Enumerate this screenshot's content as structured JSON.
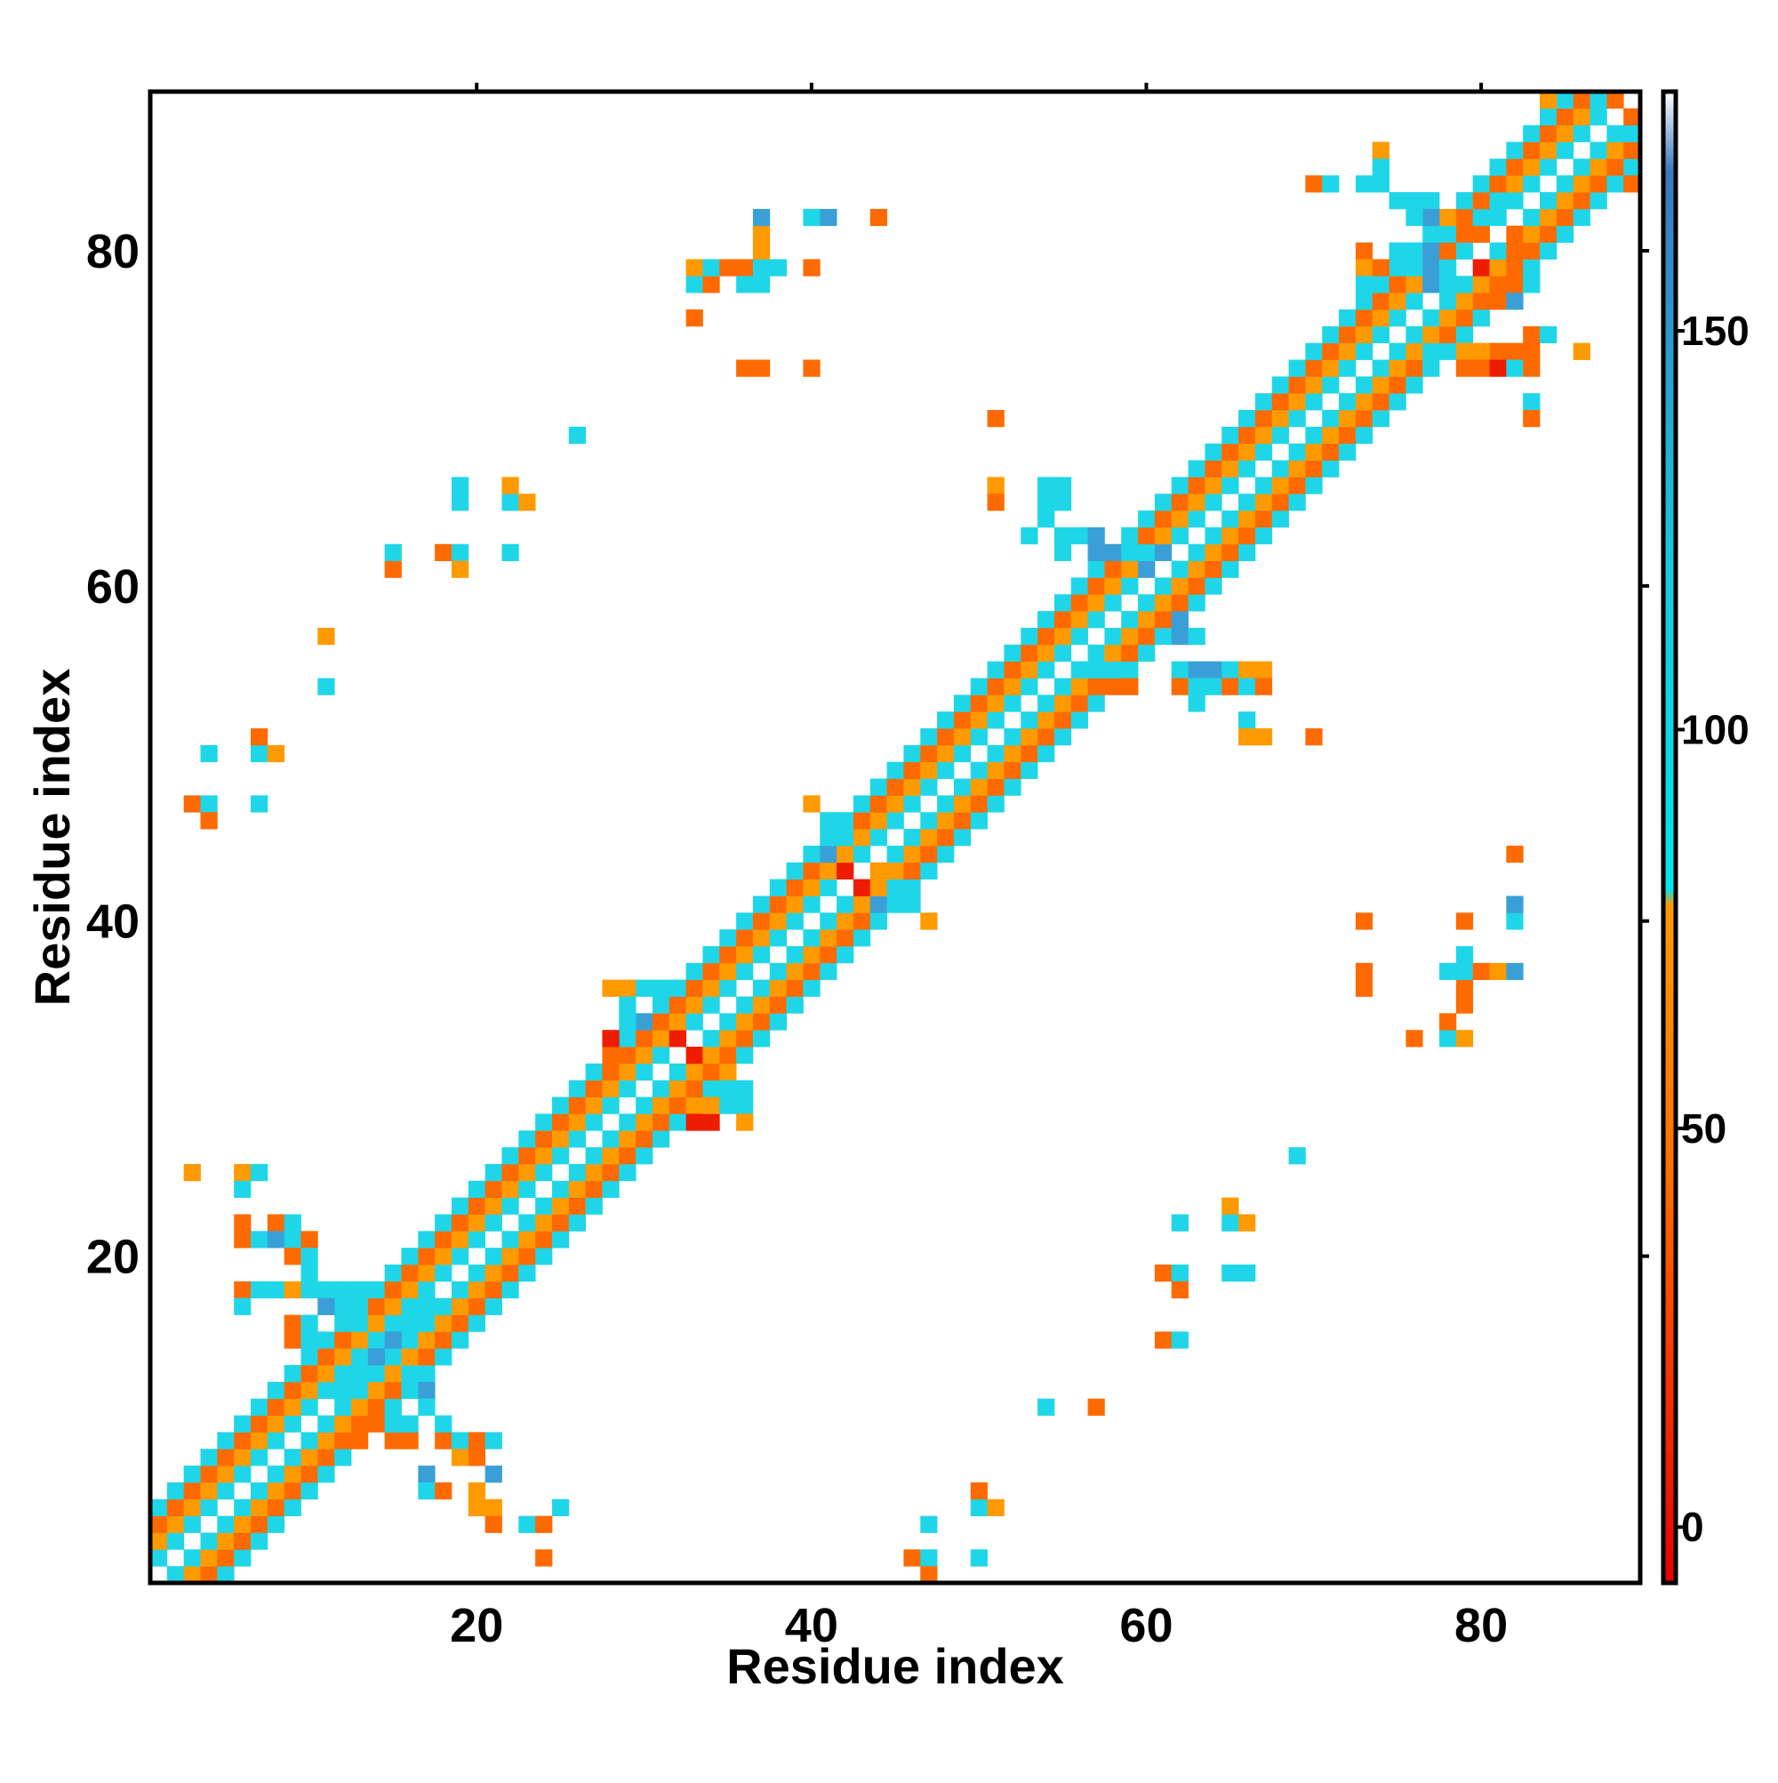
{
  "chart_data": {
    "type": "heatmap",
    "title": "",
    "xlabel": "Residue index",
    "ylabel": "Residue index",
    "xlim": [
      0.5,
      89.5
    ],
    "ylim": [
      0.5,
      89.5
    ],
    "x_ticks": [
      20,
      40,
      60,
      80
    ],
    "y_ticks": [
      20,
      40,
      60,
      80
    ],
    "grid": false,
    "legend": "colorbar on the right",
    "colorbar": {
      "ticks": [
        0,
        50,
        100,
        150
      ],
      "range": [
        -7,
        180
      ],
      "stops": [
        {
          "value": -7,
          "color": "#e60000"
        },
        {
          "value": 25,
          "color": "#ff4000"
        },
        {
          "value": 45,
          "color": "#ff7000"
        },
        {
          "value": 78,
          "color": "#ff9a00"
        },
        {
          "value": 80,
          "color": "#00e5ee"
        },
        {
          "value": 120,
          "color": "#18c8e0"
        },
        {
          "value": 170,
          "color": "#3a78c0"
        },
        {
          "value": 180,
          "color": "#ffffff"
        }
      ]
    },
    "cell_colors": {
      "R": "#ee1c00",
      "O": "#ff6a00",
      "Y": "#ff9a00",
      "C": "#1fd6e8",
      "B": "#3a9fd6",
      "D": "#4a7fc8"
    },
    "band": {
      "description": "values along the diagonal band |i-j| <= 4; code pattern by offset 0..4",
      "offset_codes": [
        "W",
        "C",
        "Y",
        "O",
        "C"
      ]
    },
    "cells": [
      [
        3,
        25,
        "Y"
      ],
      [
        6,
        25,
        "Y"
      ],
      [
        7,
        25,
        "C"
      ],
      [
        6,
        24,
        "C"
      ],
      [
        6,
        22,
        "O"
      ],
      [
        8,
        22,
        "O"
      ],
      [
        9,
        22,
        "C"
      ],
      [
        6,
        21,
        "O"
      ],
      [
        7,
        21,
        "C"
      ],
      [
        8,
        21,
        "B"
      ],
      [
        9,
        21,
        "C"
      ],
      [
        10,
        21,
        "O"
      ],
      [
        9,
        20,
        "O"
      ],
      [
        10,
        20,
        "C"
      ],
      [
        6,
        18,
        "O"
      ],
      [
        7,
        18,
        "C"
      ],
      [
        8,
        18,
        "C"
      ],
      [
        6,
        17,
        "C"
      ],
      [
        9,
        18,
        "Y"
      ],
      [
        10,
        19,
        "C"
      ],
      [
        11,
        18,
        "C"
      ],
      [
        12,
        18,
        "C"
      ],
      [
        13,
        18,
        "C"
      ],
      [
        18,
        9,
        "O"
      ],
      [
        19,
        9,
        "C"
      ],
      [
        20,
        9,
        "O"
      ],
      [
        21,
        9,
        "C"
      ],
      [
        20,
        8,
        "O"
      ],
      [
        19,
        8,
        "Y"
      ],
      [
        17,
        7,
        "B"
      ],
      [
        21,
        7,
        "B"
      ],
      [
        17,
        6,
        "C"
      ],
      [
        18,
        6,
        "O"
      ],
      [
        20,
        5,
        "Y"
      ],
      [
        21,
        5,
        "Y"
      ],
      [
        20,
        6,
        "Y"
      ],
      [
        21,
        4,
        "O"
      ],
      [
        23,
        4,
        "C"
      ],
      [
        24,
        4,
        "O"
      ],
      [
        25,
        5,
        "C"
      ],
      [
        24,
        2,
        "O"
      ],
      [
        47,
        4,
        "C"
      ],
      [
        50,
        5,
        "C"
      ],
      [
        51,
        5,
        "Y"
      ],
      [
        50,
        6,
        "O"
      ],
      [
        46,
        2,
        "O"
      ],
      [
        47,
        2,
        "C"
      ],
      [
        47,
        1,
        "O"
      ],
      [
        50,
        2,
        "C"
      ],
      [
        54,
        11,
        "C"
      ],
      [
        57,
        11,
        "O"
      ],
      [
        61,
        15,
        "O"
      ],
      [
        62,
        15,
        "C"
      ],
      [
        61,
        19,
        "O"
      ],
      [
        62,
        19,
        "C"
      ],
      [
        62,
        18,
        "O"
      ],
      [
        62,
        22,
        "C"
      ],
      [
        65,
        22,
        "C"
      ],
      [
        66,
        22,
        "Y"
      ],
      [
        65,
        23,
        "Y"
      ],
      [
        65,
        19,
        "C"
      ],
      [
        66,
        19,
        "C"
      ],
      [
        69,
        26,
        "C"
      ],
      [
        73,
        40,
        "O"
      ],
      [
        73,
        37,
        "O"
      ],
      [
        73,
        36,
        "O"
      ],
      [
        76,
        33,
        "O"
      ],
      [
        78,
        33,
        "C"
      ],
      [
        79,
        33,
        "Y"
      ],
      [
        78,
        34,
        "O"
      ],
      [
        79,
        35,
        "O"
      ],
      [
        79,
        36,
        "O"
      ],
      [
        78,
        37,
        "C"
      ],
      [
        79,
        37,
        "C"
      ],
      [
        79,
        38,
        "C"
      ],
      [
        80,
        37,
        "O"
      ],
      [
        81,
        37,
        "Y"
      ],
      [
        82,
        37,
        "B"
      ],
      [
        79,
        40,
        "O"
      ],
      [
        82,
        40,
        "C"
      ],
      [
        82,
        41,
        "B"
      ],
      [
        82,
        44,
        "O"
      ],
      [
        3,
        47,
        "O"
      ],
      [
        4,
        47,
        "C"
      ],
      [
        4,
        46,
        "O"
      ],
      [
        7,
        47,
        "C"
      ],
      [
        4,
        50,
        "C"
      ],
      [
        7,
        50,
        "C"
      ],
      [
        7,
        51,
        "O"
      ],
      [
        8,
        50,
        "Y"
      ],
      [
        11,
        54,
        "C"
      ],
      [
        11,
        57,
        "Y"
      ],
      [
        15,
        61,
        "O"
      ],
      [
        15,
        62,
        "C"
      ],
      [
        18,
        62,
        "O"
      ],
      [
        19,
        62,
        "C"
      ],
      [
        19,
        61,
        "Y"
      ],
      [
        22,
        62,
        "C"
      ],
      [
        19,
        65,
        "C"
      ],
      [
        19,
        66,
        "C"
      ],
      [
        22,
        65,
        "C"
      ],
      [
        22,
        66,
        "Y"
      ],
      [
        23,
        65,
        "Y"
      ],
      [
        26,
        69,
        "C"
      ],
      [
        33,
        76,
        "O"
      ],
      [
        36,
        73,
        "O"
      ],
      [
        37,
        73,
        "O"
      ],
      [
        40,
        73,
        "O"
      ],
      [
        33,
        78,
        "C"
      ],
      [
        33,
        79,
        "Y"
      ],
      [
        34,
        78,
        "O"
      ],
      [
        34,
        79,
        "C"
      ],
      [
        35,
        79,
        "O"
      ],
      [
        36,
        79,
        "O"
      ],
      [
        37,
        79,
        "C"
      ],
      [
        38,
        79,
        "C"
      ],
      [
        36,
        78,
        "C"
      ],
      [
        37,
        78,
        "C"
      ],
      [
        37,
        80,
        "Y"
      ],
      [
        37,
        81,
        "Y"
      ],
      [
        37,
        82,
        "B"
      ],
      [
        40,
        79,
        "O"
      ],
      [
        40,
        82,
        "C"
      ],
      [
        41,
        82,
        "B"
      ],
      [
        44,
        82,
        "O"
      ],
      [
        51,
        70,
        "O"
      ],
      [
        51,
        66,
        "Y"
      ],
      [
        51,
        65,
        "O"
      ],
      [
        54,
        66,
        "C"
      ],
      [
        55,
        66,
        "C"
      ],
      [
        54,
        65,
        "C"
      ],
      [
        55,
        65,
        "C"
      ],
      [
        54,
        64,
        "C"
      ],
      [
        53,
        63,
        "C"
      ],
      [
        55,
        63,
        "C"
      ],
      [
        56,
        63,
        "C"
      ],
      [
        57,
        63,
        "B"
      ],
      [
        55,
        62,
        "C"
      ],
      [
        57,
        62,
        "B"
      ],
      [
        58,
        62,
        "B"
      ],
      [
        59,
        62,
        "C"
      ],
      [
        62,
        58,
        "B"
      ],
      [
        62,
        57,
        "B"
      ],
      [
        63,
        57,
        "C"
      ],
      [
        62,
        55,
        "C"
      ],
      [
        63,
        55,
        "B"
      ],
      [
        64,
        55,
        "B"
      ],
      [
        65,
        55,
        "C"
      ],
      [
        66,
        55,
        "Y"
      ],
      [
        67,
        55,
        "Y"
      ],
      [
        62,
        54,
        "O"
      ],
      [
        63,
        54,
        "C"
      ],
      [
        64,
        54,
        "C"
      ],
      [
        65,
        54,
        "O"
      ],
      [
        66,
        54,
        "C"
      ],
      [
        67,
        54,
        "O"
      ],
      [
        63,
        53,
        "C"
      ],
      [
        66,
        52,
        "C"
      ],
      [
        66,
        51,
        "Y"
      ],
      [
        67,
        51,
        "Y"
      ],
      [
        70,
        51,
        "O"
      ],
      [
        59,
        54,
        "O"
      ],
      [
        58,
        54,
        "O"
      ],
      [
        57,
        54,
        "O"
      ],
      [
        57,
        55,
        "C"
      ],
      [
        58,
        55,
        "C"
      ],
      [
        70,
        84,
        "O"
      ],
      [
        71,
        84,
        "C"
      ],
      [
        73,
        84,
        "C"
      ],
      [
        74,
        84,
        "C"
      ],
      [
        74,
        86,
        "Y"
      ],
      [
        74,
        85,
        "C"
      ],
      [
        73,
        80,
        "O"
      ],
      [
        73,
        79,
        "Y"
      ],
      [
        73,
        78,
        "C"
      ],
      [
        74,
        79,
        "O"
      ],
      [
        75,
        79,
        "C"
      ],
      [
        76,
        79,
        "C"
      ],
      [
        77,
        79,
        "B"
      ],
      [
        78,
        79,
        "C"
      ],
      [
        75,
        80,
        "C"
      ],
      [
        77,
        80,
        "B"
      ],
      [
        78,
        80,
        "O"
      ],
      [
        79,
        80,
        "C"
      ],
      [
        77,
        78,
        "B"
      ],
      [
        78,
        78,
        "C"
      ],
      [
        81,
        78,
        "O"
      ],
      [
        82,
        78,
        "O"
      ],
      [
        83,
        78,
        "C"
      ],
      [
        81,
        77,
        "O"
      ],
      [
        82,
        77,
        "B"
      ],
      [
        83,
        75,
        "O"
      ],
      [
        84,
        75,
        "C"
      ],
      [
        86,
        74,
        "Y"
      ],
      [
        83,
        74,
        "O"
      ],
      [
        82,
        74,
        "O"
      ],
      [
        81,
        74,
        "O"
      ],
      [
        80,
        74,
        "Y"
      ],
      [
        79,
        74,
        "Y"
      ],
      [
        78,
        74,
        "C"
      ],
      [
        77,
        74,
        "C"
      ],
      [
        79,
        73,
        "O"
      ],
      [
        80,
        73,
        "O"
      ],
      [
        81,
        73,
        "R"
      ],
      [
        82,
        73,
        "C"
      ],
      [
        83,
        73,
        "O"
      ],
      [
        83,
        71,
        "C"
      ],
      [
        83,
        70,
        "O"
      ],
      [
        77,
        83,
        "C"
      ],
      [
        77,
        82,
        "B"
      ],
      [
        78,
        81,
        "C"
      ],
      [
        78,
        82,
        "Y"
      ],
      [
        79,
        82,
        "O"
      ],
      [
        80,
        81,
        "O"
      ],
      [
        82,
        81,
        "O"
      ],
      [
        82,
        80,
        "O"
      ],
      [
        81,
        80,
        "C"
      ],
      [
        80,
        79,
        "R"
      ],
      [
        79,
        81,
        "O"
      ],
      [
        80,
        82,
        "C"
      ],
      [
        81,
        83,
        "C"
      ],
      [
        76,
        82,
        "C"
      ],
      [
        76,
        83,
        "C"
      ],
      [
        75,
        83,
        "C"
      ],
      [
        28,
        36,
        "Y"
      ],
      [
        29,
        36,
        "Y"
      ],
      [
        30,
        36,
        "C"
      ],
      [
        31,
        36,
        "C"
      ],
      [
        29,
        35,
        "C"
      ],
      [
        29,
        34,
        "C"
      ],
      [
        28,
        33,
        "R"
      ],
      [
        28,
        32,
        "O"
      ],
      [
        30,
        34,
        "B"
      ],
      [
        32,
        33,
        "R"
      ],
      [
        33,
        32,
        "R"
      ],
      [
        33,
        28,
        "R"
      ],
      [
        34,
        28,
        "R"
      ],
      [
        33,
        29,
        "Y"
      ],
      [
        34,
        29,
        "Y"
      ],
      [
        35,
        29,
        "C"
      ],
      [
        36,
        29,
        "C"
      ],
      [
        36,
        28,
        "Y"
      ],
      [
        35,
        30,
        "C"
      ],
      [
        36,
        30,
        "C"
      ],
      [
        35,
        31,
        "Y"
      ],
      [
        40,
        47,
        "Y"
      ],
      [
        41,
        46,
        "C"
      ],
      [
        42,
        45,
        "C"
      ],
      [
        43,
        44,
        "C"
      ],
      [
        44,
        43,
        "Y"
      ],
      [
        45,
        42,
        "C"
      ],
      [
        46,
        41,
        "C"
      ],
      [
        47,
        40,
        "Y"
      ],
      [
        42,
        43,
        "R"
      ],
      [
        43,
        42,
        "R"
      ],
      [
        41,
        44,
        "B"
      ],
      [
        44,
        41,
        "B"
      ],
      [
        12,
        12,
        "C"
      ],
      [
        13,
        13,
        "C"
      ],
      [
        14,
        14,
        "B"
      ],
      [
        15,
        15,
        "B"
      ],
      [
        16,
        16,
        "C"
      ],
      [
        17,
        17,
        "C"
      ],
      [
        17,
        12,
        "B"
      ],
      [
        17,
        11,
        "C"
      ],
      [
        12,
        17,
        "C"
      ],
      [
        11,
        17,
        "B"
      ],
      [
        13,
        16,
        "C"
      ],
      [
        16,
        13,
        "C"
      ],
      [
        10,
        18,
        "C"
      ],
      [
        18,
        10,
        "C"
      ],
      [
        9,
        15,
        "O"
      ],
      [
        9,
        16,
        "O"
      ],
      [
        10,
        16,
        "C"
      ],
      [
        10,
        15,
        "C"
      ],
      [
        15,
        9,
        "O"
      ],
      [
        16,
        9,
        "O"
      ],
      [
        15,
        10,
        "C"
      ],
      [
        16,
        10,
        "C"
      ],
      [
        14,
        10,
        "O"
      ],
      [
        13,
        9,
        "O"
      ],
      [
        84,
        89,
        "Y"
      ],
      [
        85,
        89,
        "C"
      ],
      [
        86,
        89,
        "O"
      ],
      [
        87,
        89,
        "C"
      ],
      [
        88,
        89,
        "O"
      ],
      [
        89,
        88,
        "O"
      ],
      [
        89,
        87,
        "C"
      ],
      [
        89,
        86,
        "O"
      ],
      [
        89,
        85,
        "C"
      ],
      [
        89,
        84,
        "O"
      ],
      [
        61,
        60,
        "C"
      ],
      [
        62,
        61,
        "C"
      ],
      [
        63,
        62,
        "C"
      ],
      [
        60,
        61,
        "B"
      ],
      [
        61,
        62,
        "B"
      ],
      [
        59,
        62,
        "C"
      ],
      [
        60,
        62,
        "C"
      ]
    ]
  }
}
